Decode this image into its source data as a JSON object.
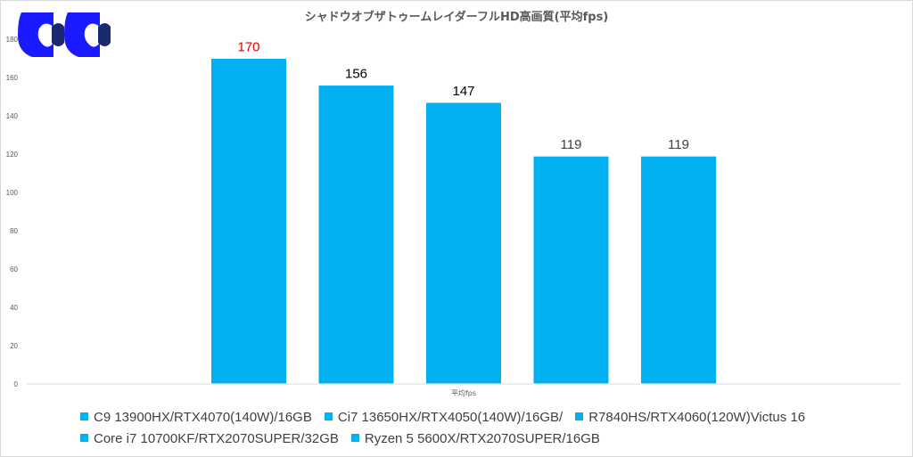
{
  "logo": {
    "name": "cc-logo",
    "colors": [
      "#1a1aff",
      "#1a2a6c"
    ]
  },
  "chart_data": {
    "type": "bar",
    "title": "シャドウオブザトゥームレイダーフルHD高画質(平均fps)",
    "category": "平均fps",
    "ylim": [
      0,
      180
    ],
    "yticks": [
      0,
      20,
      40,
      60,
      80,
      100,
      120,
      140,
      160,
      180
    ],
    "grid": false,
    "legend_position": "bottom",
    "bar_color": "#00b0f0",
    "series": [
      {
        "name": "C9 13900HX/RTX4070(140W)/16GB",
        "value": 170,
        "label_color": "#e00000"
      },
      {
        "name": "Ci7 13650HX/RTX4050(140W)/16GB/",
        "value": 156,
        "label_color": "#000000"
      },
      {
        "name": "R7840HS/RTX4060(120W)Victus 16",
        "value": 147,
        "label_color": "#000000"
      },
      {
        "name": "Core i7 10700KF/RTX2070SUPER/32GB",
        "value": 119,
        "label_color": "#404040"
      },
      {
        "name": "Ryzen 5 5600X/RTX2070SUPER/16GB",
        "value": 119,
        "label_color": "#404040"
      }
    ]
  }
}
